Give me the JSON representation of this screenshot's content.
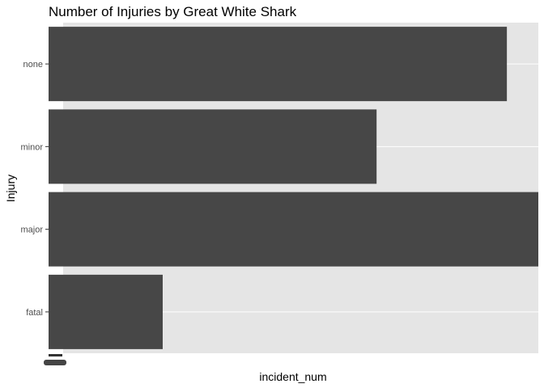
{
  "chart_data": {
    "type": "bar",
    "orientation": "horizontal",
    "title": "Number of Injuries by Great White Shark",
    "xlabel": "incident_num",
    "ylabel": "Injury",
    "categories": [
      "none",
      "minor",
      "major",
      "fatal"
    ],
    "values": [
      51,
      36.5,
      56,
      12.7
    ],
    "xlim": [
      0,
      54.5
    ],
    "x_tick_labels": "overlapping, illegible",
    "grid": true,
    "legend": "none",
    "colors": {
      "bar": "#474747",
      "panel": "#e5e5e5",
      "grid": "#ffffff"
    }
  }
}
